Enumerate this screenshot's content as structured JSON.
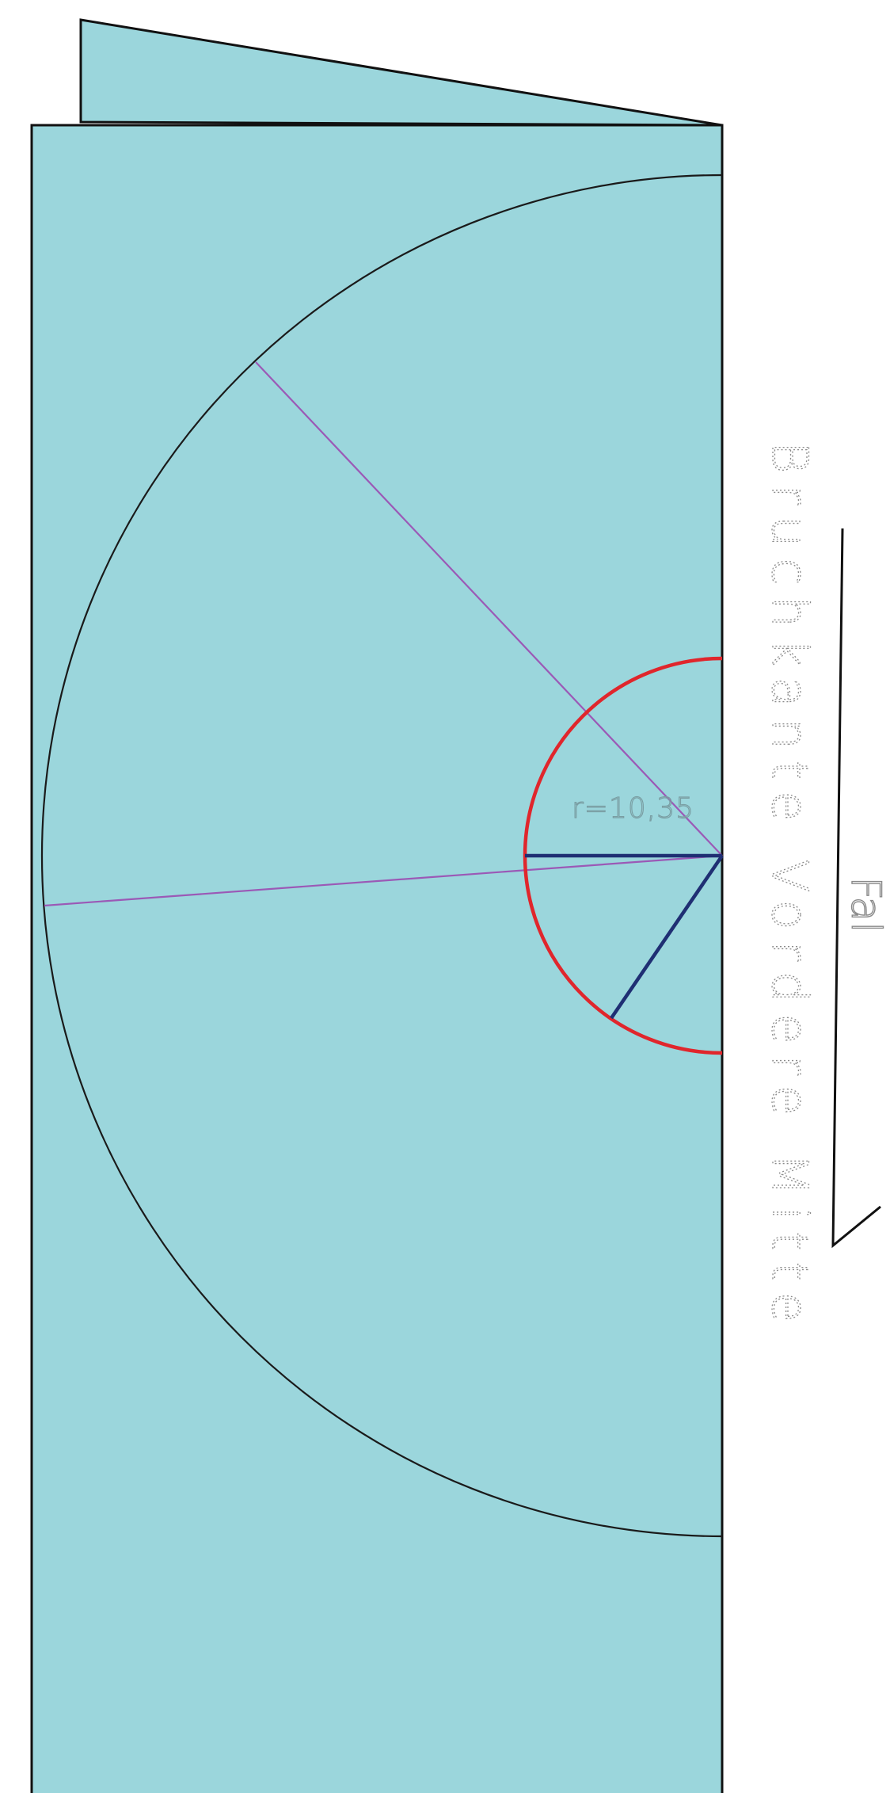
{
  "diagram": {
    "colors": {
      "fabric": "#9bd6dc",
      "outline": "#111111",
      "outer_arc": "#1a1a1a",
      "inner_arc": "#e0262c",
      "guide_line": "#9b59b6",
      "marker_line": "#1f2f73",
      "label": "#7a9ea3",
      "edge_label": "#8a8a8a"
    },
    "labels": {
      "radius": "r=10,35",
      "fold": "Fal",
      "fold_edge": "Bruchkante Vordere Mitte"
    }
  }
}
